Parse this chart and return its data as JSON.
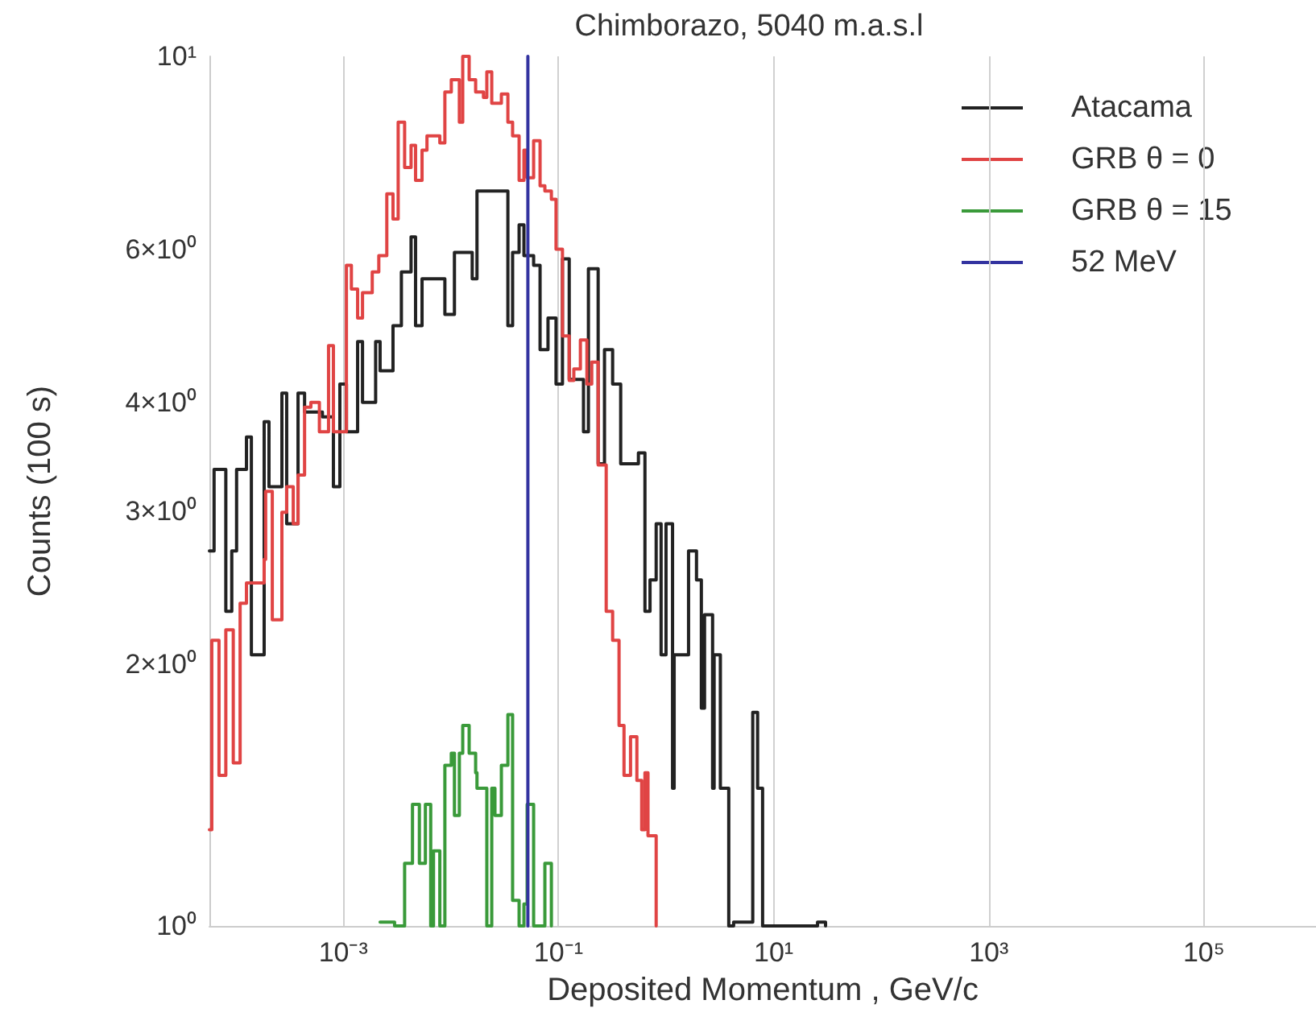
{
  "chart_data": {
    "type": "step",
    "title": "Chimborazo, 5040 m.a.s.l",
    "xlabel": "Deposited Momentum , GeV/c",
    "ylabel": "Counts (100 s)",
    "log": "xy",
    "grid": "x",
    "legend": "top right",
    "marker": "none",
    "line_style": "solid",
    "xlim": [
      5.7e-05,
      1100000
    ],
    "ylim": [
      1,
      10
    ],
    "xticks": [
      {
        "value": 0.001,
        "label": "10⁻³"
      },
      {
        "value": 0.1,
        "label": "10⁻¹"
      },
      {
        "value": 10,
        "label": "10¹"
      },
      {
        "value": 1000,
        "label": "10³"
      },
      {
        "value": 100000,
        "label": "10⁵"
      }
    ],
    "yticks": [
      {
        "value": 1,
        "label": "10⁰"
      },
      {
        "value": 2,
        "label": "2×10⁰"
      },
      {
        "value": 3,
        "label": "3×10⁰"
      },
      {
        "value": 4,
        "label": "4×10⁰"
      },
      {
        "value": 6,
        "label": "6×10⁰"
      },
      {
        "value": 10,
        "label": "10¹"
      }
    ],
    "series": [
      {
        "name": "Atacama",
        "color": "#222222",
        "x": [
          5.7e-05,
          6.3e-05,
          8.1e-05,
          9.2e-05,
          0.000102,
          0.000126,
          0.00014,
          0.000184,
          0.000204,
          0.000269,
          0.000298,
          0.00038,
          0.000437,
          0.00064,
          0.00081,
          0.00093,
          0.00107,
          0.00136,
          0.00151,
          0.002,
          0.0022,
          0.0029,
          0.00347,
          0.00427,
          0.0047,
          0.0054,
          0.0088,
          0.0108,
          0.0158,
          0.0175,
          0.0339,
          0.0375,
          0.0431,
          0.0478,
          0.0588,
          0.0675,
          0.08,
          0.095,
          0.109,
          0.126,
          0.171,
          0.19,
          0.234,
          0.268,
          0.319,
          0.379,
          0.554,
          0.637,
          0.71,
          0.81,
          0.9,
          1.0,
          1.15,
          1.19,
          1.62,
          1.92,
          2.13,
          2.28,
          2.71,
          2.8,
          3.2,
          3.83,
          4.25,
          6.4,
          7.1,
          7.9,
          25.6,
          30.4
        ],
        "values": [
          2.7,
          3.35,
          2.3,
          2.7,
          3.35,
          3.65,
          2.05,
          3.8,
          3.2,
          4.1,
          2.9,
          4.1,
          3.9,
          3.85,
          3.2,
          4.2,
          3.7,
          4.7,
          4.0,
          4.7,
          4.35,
          4.9,
          5.65,
          6.2,
          4.9,
          5.55,
          5.05,
          5.95,
          5.55,
          7.0,
          4.9,
          5.95,
          6.4,
          5.9,
          5.75,
          4.6,
          5.0,
          4.2,
          5.85,
          4.25,
          3.7,
          5.7,
          3.4,
          4.6,
          4.2,
          3.4,
          3.5,
          2.3,
          2.5,
          2.9,
          2.05,
          2.9,
          1.44,
          2.05,
          2.7,
          2.5,
          1.78,
          2.28,
          1.44,
          2.05,
          1.44,
          1.0,
          1.01,
          1.76,
          1.44,
          1.0,
          1.01,
          1.0
        ]
      },
      {
        "name": "GRB θ = 0",
        "color": "#e04444",
        "x": [
          5.7e-05,
          6e-05,
          7e-05,
          8.1e-05,
          9.5e-05,
          0.00011,
          0.000126,
          0.000184,
          0.00019,
          0.000219,
          0.000269,
          0.000298,
          0.000343,
          0.00038,
          0.000437,
          0.0005,
          0.0006,
          0.00073,
          0.00081,
          0.00107,
          0.00119,
          0.00136,
          0.00151,
          0.00186,
          0.00214,
          0.00254,
          0.0029,
          0.00324,
          0.00372,
          0.00427,
          0.0047,
          0.0054,
          0.006,
          0.0079,
          0.0088,
          0.0101,
          0.012,
          0.0129,
          0.0148,
          0.017,
          0.0201,
          0.0216,
          0.024,
          0.0295,
          0.0339,
          0.0375,
          0.0431,
          0.0478,
          0.0512,
          0.0588,
          0.0675,
          0.0748,
          0.086,
          0.095,
          0.109,
          0.126,
          0.139,
          0.16,
          0.184,
          0.204,
          0.234,
          0.278,
          0.319,
          0.366,
          0.407,
          0.468,
          0.536,
          0.594,
          0.637,
          0.68,
          0.81
        ],
        "values": [
          1.29,
          2.13,
          1.49,
          2.19,
          1.54,
          2.35,
          2.48,
          2.64,
          3.16,
          2.25,
          2.99,
          3.2,
          2.9,
          3.3,
          3.95,
          4.0,
          3.7,
          4.65,
          3.7,
          5.75,
          5.4,
          5.0,
          5.35,
          5.65,
          5.9,
          6.95,
          6.5,
          8.4,
          7.45,
          7.9,
          7.2,
          7.8,
          8.1,
          7.95,
          9.1,
          9.4,
          8.4,
          10,
          9.4,
          9.1,
          8.97,
          9.6,
          8.83,
          9.05,
          8.4,
          8.1,
          7.2,
          7.8,
          7.25,
          8.0,
          7.1,
          7.0,
          6.85,
          6.0,
          4.77,
          4.24,
          4.37,
          4.72,
          4.2,
          4.45,
          3.39,
          2.3,
          2.13,
          1.7,
          1.49,
          1.65,
          1.47,
          1.29,
          1.5,
          1.27,
          1.0
        ]
      },
      {
        "name": "GRB θ = 15",
        "color": "#3a9a3a",
        "x": [
          0.0022,
          0.003,
          0.00372,
          0.0044,
          0.0051,
          0.0058,
          0.0065,
          0.0069,
          0.0079,
          0.0088,
          0.0101,
          0.0108,
          0.012,
          0.0129,
          0.0148,
          0.017,
          0.0175,
          0.0216,
          0.024,
          0.0257,
          0.0295,
          0.0339,
          0.0375,
          0.0431,
          0.0478,
          0.0512,
          0.0588,
          0.0748,
          0.086
        ],
        "values": [
          1.01,
          1.0,
          1.18,
          1.38,
          1.18,
          1.38,
          1.0,
          1.22,
          1.0,
          1.53,
          1.58,
          1.34,
          1.58,
          1.7,
          1.58,
          1.5,
          1.44,
          1.0,
          1.44,
          1.34,
          1.53,
          1.75,
          1.07,
          1.0,
          1.06,
          1.38,
          1.0,
          1.18,
          1.0
        ]
      },
      {
        "name": "52 MeV",
        "type": "line",
        "color": "#3333a0",
        "x": [
          0.052,
          0.052
        ],
        "values": [
          1,
          10
        ]
      }
    ]
  }
}
